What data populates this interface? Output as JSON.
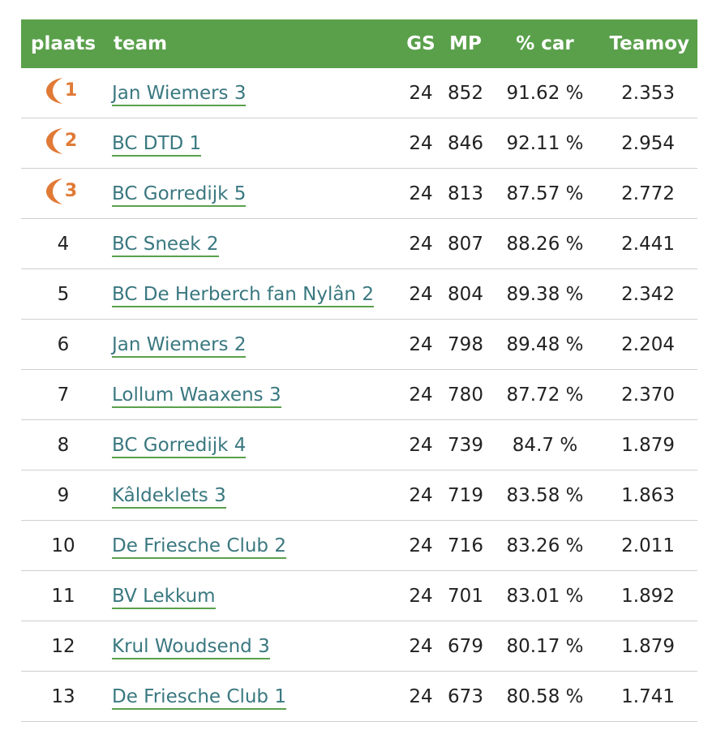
{
  "colors": {
    "header_bg": "#5aa04b",
    "link": "#3a7880",
    "link_underline": "#5aa04b",
    "medal": "#e07a36"
  },
  "headers": {
    "plaats": "plaats",
    "team": "team",
    "gs": "GS",
    "mp": "MP",
    "car": "% car",
    "teamoy": "Teamoy"
  },
  "rows": [
    {
      "plaats": "1",
      "medal": true,
      "team": "Jan Wiemers 3",
      "gs": "24",
      "mp": "852",
      "car": "91.62 %",
      "teamoy": "2.353"
    },
    {
      "plaats": "2",
      "medal": true,
      "team": "BC DTD 1",
      "gs": "24",
      "mp": "846",
      "car": "92.11 %",
      "teamoy": "2.954"
    },
    {
      "plaats": "3",
      "medal": true,
      "team": "BC Gorredijk 5",
      "gs": "24",
      "mp": "813",
      "car": "87.57 %",
      "teamoy": "2.772"
    },
    {
      "plaats": "4",
      "medal": false,
      "team": "BC Sneek 2",
      "gs": "24",
      "mp": "807",
      "car": "88.26 %",
      "teamoy": "2.441"
    },
    {
      "plaats": "5",
      "medal": false,
      "team": "BC De Herberch fan Nylân 2",
      "gs": "24",
      "mp": "804",
      "car": "89.38 %",
      "teamoy": "2.342"
    },
    {
      "plaats": "6",
      "medal": false,
      "team": "Jan Wiemers 2",
      "gs": "24",
      "mp": "798",
      "car": "89.48 %",
      "teamoy": "2.204"
    },
    {
      "plaats": "7",
      "medal": false,
      "team": "Lollum Waaxens 3",
      "gs": "24",
      "mp": "780",
      "car": "87.72 %",
      "teamoy": "2.370"
    },
    {
      "plaats": "8",
      "medal": false,
      "team": "BC Gorredijk 4",
      "gs": "24",
      "mp": "739",
      "car": "84.7 %",
      "teamoy": "1.879"
    },
    {
      "plaats": "9",
      "medal": false,
      "team": "Kâldeklets 3",
      "gs": "24",
      "mp": "719",
      "car": "83.58 %",
      "teamoy": "1.863"
    },
    {
      "plaats": "10",
      "medal": false,
      "team": "De Friesche Club 2",
      "gs": "24",
      "mp": "716",
      "car": "83.26 %",
      "teamoy": "2.011"
    },
    {
      "plaats": "11",
      "medal": false,
      "team": "BV Lekkum",
      "gs": "24",
      "mp": "701",
      "car": "83.01 %",
      "teamoy": "1.892"
    },
    {
      "plaats": "12",
      "medal": false,
      "team": "Krul Woudsend 3",
      "gs": "24",
      "mp": "679",
      "car": "80.17 %",
      "teamoy": "1.879"
    },
    {
      "plaats": "13",
      "medal": false,
      "team": "De Friesche Club 1",
      "gs": "24",
      "mp": "673",
      "car": "80.58 %",
      "teamoy": "1.741"
    }
  ]
}
